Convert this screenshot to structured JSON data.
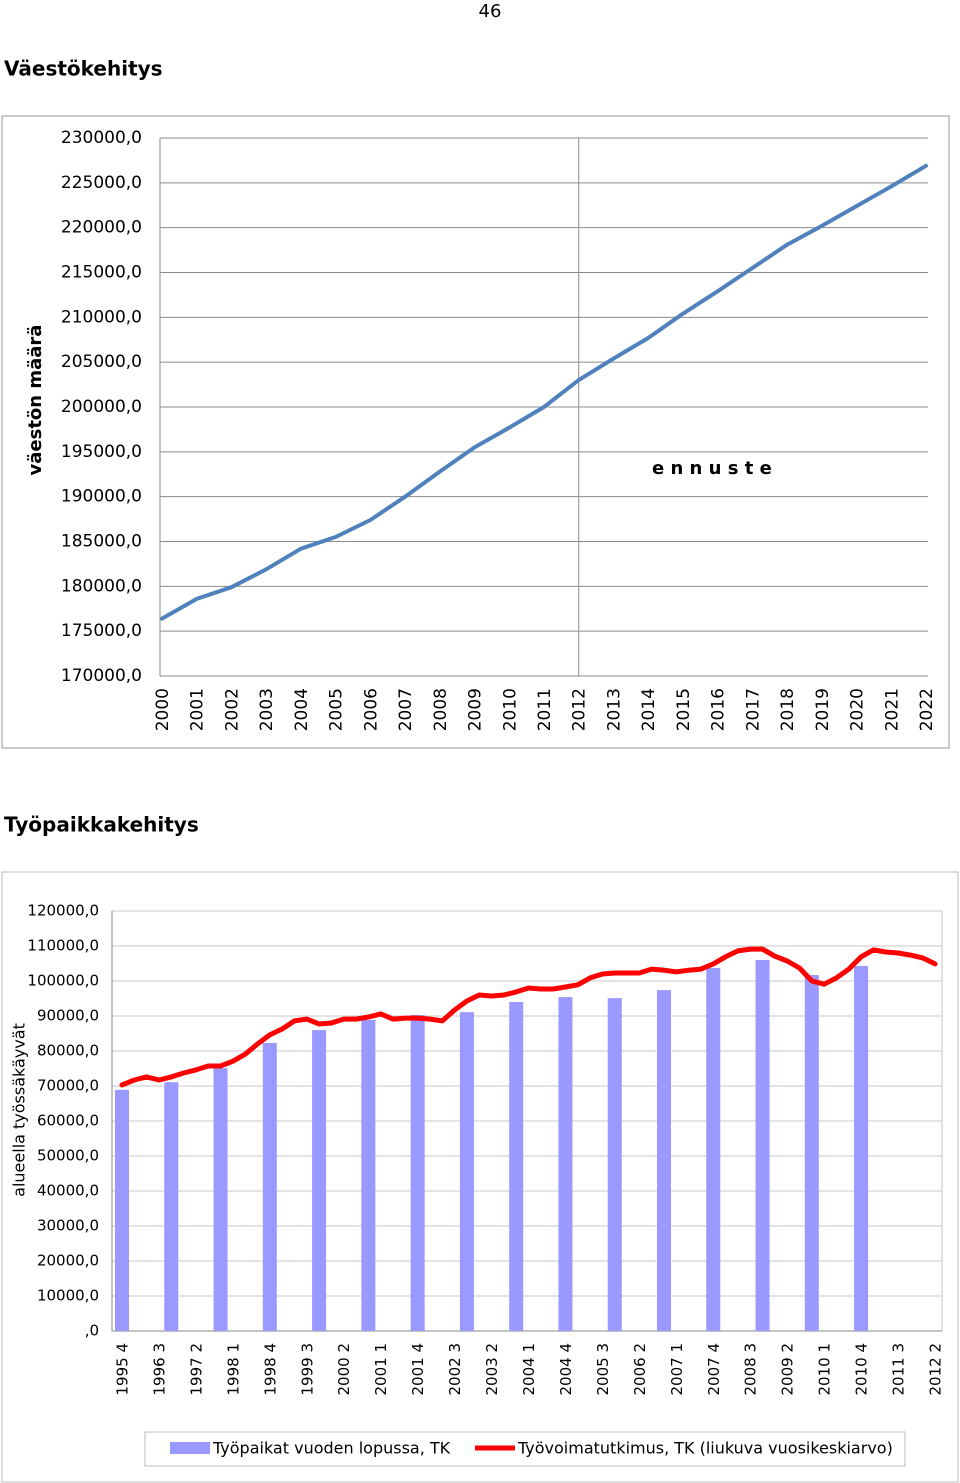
{
  "page_number": "46",
  "chart_data": [
    {
      "type": "line",
      "title": "Väestökehitys",
      "y_label": "väestön määrä",
      "annotation": "e n n u s t e",
      "categories": [
        "2000",
        "2001",
        "2002",
        "2003",
        "2004",
        "2005",
        "2006",
        "2007",
        "2008",
        "2009",
        "2010",
        "2011",
        "2012",
        "2013",
        "2014",
        "2015",
        "2016",
        "2017",
        "2018",
        "2019",
        "2020",
        "2021",
        "2022"
      ],
      "values": [
        176400,
        178600,
        179900,
        181900,
        184200,
        185500,
        187400,
        190000,
        192800,
        195500,
        197700,
        200000,
        203000,
        205400,
        207700,
        210400,
        212900,
        215500,
        218100,
        220200,
        222400,
        224600,
        226900
      ],
      "color": "#4f81bd",
      "ylim": [
        170000,
        230000
      ],
      "yticks": [
        {
          "value": 170000,
          "label": "170000,0"
        },
        {
          "value": 175000,
          "label": "175000,0"
        },
        {
          "value": 180000,
          "label": "180000,0"
        },
        {
          "value": 185000,
          "label": "185000,0"
        },
        {
          "value": 190000,
          "label": "190000,0"
        },
        {
          "value": 195000,
          "label": "195000,0"
        },
        {
          "value": 200000,
          "label": "200000,0"
        },
        {
          "value": 205000,
          "label": "205000,0"
        },
        {
          "value": 210000,
          "label": "210000,0"
        },
        {
          "value": 215000,
          "label": "215000,0"
        },
        {
          "value": 220000,
          "label": "220000,0"
        },
        {
          "value": 225000,
          "label": "225000,0"
        },
        {
          "value": 230000,
          "label": "230000,0"
        }
      ],
      "grid": true
    },
    {
      "type": "bar",
      "title": "Työpaikkakehitys",
      "y_label": "alueella työssäkäyvät",
      "categories": [
        "1995 4",
        null,
        null,
        "1996 3",
        null,
        null,
        "1997 2",
        null,
        null,
        "1998 1",
        null,
        null,
        "1998 4",
        null,
        null,
        "1999 3",
        null,
        null,
        "2000 2",
        null,
        null,
        "2001 1",
        null,
        null,
        "2001 4",
        null,
        null,
        "2002 3",
        null,
        null,
        "2003 2",
        null,
        null,
        "2004 1",
        null,
        null,
        "2004 4",
        null,
        null,
        "2005 3",
        null,
        null,
        "2006 2",
        null,
        null,
        "2007 1",
        null,
        null,
        "2007 4",
        null,
        null,
        "2008 3",
        null,
        null,
        "2009 2",
        null,
        null,
        "2010 1",
        null,
        null,
        "2010 4",
        null,
        null,
        "2011 3",
        null,
        null,
        "2012 2"
      ],
      "series": [
        {
          "name": "Työpaikat vuoden lopussa, TK",
          "type": "bar",
          "color": "#9999ff",
          "values": [
            68900,
            null,
            null,
            null,
            71100,
            null,
            null,
            null,
            75100,
            null,
            null,
            null,
            82300,
            null,
            null,
            null,
            86000,
            null,
            null,
            null,
            88900,
            null,
            null,
            null,
            90300,
            null,
            null,
            null,
            91100,
            null,
            null,
            null,
            94000,
            null,
            null,
            null,
            95400,
            null,
            null,
            null,
            95100,
            null,
            null,
            null,
            97400,
            null,
            null,
            null,
            103700,
            null,
            null,
            null,
            106000,
            null,
            null,
            null,
            101700,
            null,
            null,
            null,
            104300,
            null,
            null,
            null,
            null,
            null,
            null
          ]
        },
        {
          "name": "Työvoimatutkimus, TK (liukuva vuosikeskiarvo)",
          "type": "line",
          "color": "#ff0000",
          "values": [
            70300,
            71700,
            72600,
            71700,
            72600,
            73700,
            74600,
            75700,
            75700,
            77100,
            79100,
            82000,
            84600,
            86300,
            88600,
            89100,
            87700,
            88000,
            89100,
            89100,
            89700,
            90600,
            89100,
            89400,
            89400,
            89100,
            88600,
            91700,
            94300,
            96000,
            95700,
            96000,
            96900,
            98000,
            97700,
            97700,
            98300,
            98900,
            100900,
            102000,
            102300,
            102300,
            102300,
            103400,
            103100,
            102600,
            103100,
            103400,
            104900,
            106900,
            108600,
            109100,
            109100,
            107100,
            105700,
            103700,
            100000,
            99100,
            100900,
            103400,
            106900,
            108900,
            108300,
            108000,
            107400,
            106600,
            104900
          ]
        }
      ],
      "ylim": [
        0,
        120000
      ],
      "yticks": [
        {
          "value": 0,
          "label": ",0"
        },
        {
          "value": 10000,
          "label": "10000,0"
        },
        {
          "value": 20000,
          "label": "20000,0"
        },
        {
          "value": 30000,
          "label": "30000,0"
        },
        {
          "value": 40000,
          "label": "40000,0"
        },
        {
          "value": 50000,
          "label": "50000,0"
        },
        {
          "value": 60000,
          "label": "60000,0"
        },
        {
          "value": 70000,
          "label": "70000,0"
        },
        {
          "value": 80000,
          "label": "80000,0"
        },
        {
          "value": 90000,
          "label": "90000,0"
        },
        {
          "value": 100000,
          "label": "100000,0"
        },
        {
          "value": 110000,
          "label": "110000,0"
        },
        {
          "value": 120000,
          "label": "120000,0"
        }
      ],
      "grid": true,
      "legend": "bottom"
    }
  ]
}
